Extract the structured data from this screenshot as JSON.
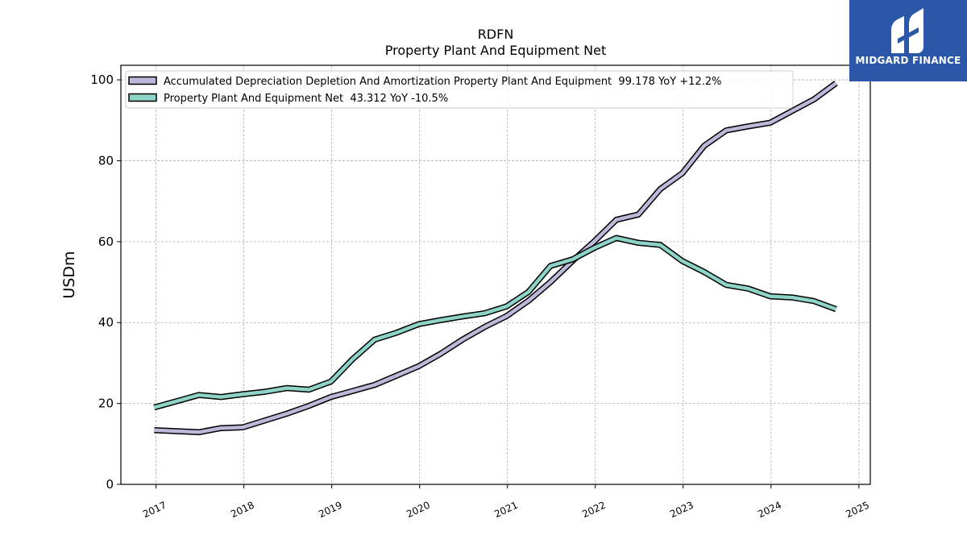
{
  "chart_data": {
    "type": "line",
    "title": "RDFN",
    "subtitle": "Property Plant And Equipment Net",
    "ylabel": "USDm",
    "xlabel": "",
    "ylim": [
      0,
      103.6
    ],
    "xlim": [
      2016.6,
      2025.13
    ],
    "x_ticks": [
      "2017",
      "2018",
      "2019",
      "2020",
      "2021",
      "2022",
      "2023",
      "2024",
      "2025"
    ],
    "y_ticks": [
      "0",
      "20",
      "40",
      "60",
      "80",
      "100"
    ],
    "grid": true,
    "legend_position": "top-left",
    "series": [
      {
        "name": "Accumulated Depreciation Depletion And Amortization Property Plant And Equipment  99.178 YoY +12.2%",
        "color": "#bcb8d9",
        "points": [
          {
            "x": 2016.98,
            "y": 13.4
          },
          {
            "x": 2017.49,
            "y": 12.9
          },
          {
            "x": 2017.74,
            "y": 13.9
          },
          {
            "x": 2017.99,
            "y": 14.1
          },
          {
            "x": 2018.24,
            "y": 15.8
          },
          {
            "x": 2018.49,
            "y": 17.5
          },
          {
            "x": 2018.74,
            "y": 19.4
          },
          {
            "x": 2018.99,
            "y": 21.6
          },
          {
            "x": 2019.24,
            "y": 23.1
          },
          {
            "x": 2019.49,
            "y": 24.6
          },
          {
            "x": 2019.74,
            "y": 26.9
          },
          {
            "x": 2019.99,
            "y": 29.2
          },
          {
            "x": 2020.24,
            "y": 32.3
          },
          {
            "x": 2020.49,
            "y": 35.8
          },
          {
            "x": 2020.74,
            "y": 38.9
          },
          {
            "x": 2020.99,
            "y": 41.6
          },
          {
            "x": 2021.24,
            "y": 45.4
          },
          {
            "x": 2021.49,
            "y": 50.0
          },
          {
            "x": 2021.74,
            "y": 55.2
          },
          {
            "x": 2021.99,
            "y": 60.1
          },
          {
            "x": 2022.24,
            "y": 65.4
          },
          {
            "x": 2022.49,
            "y": 66.7
          },
          {
            "x": 2022.74,
            "y": 73.0
          },
          {
            "x": 2022.99,
            "y": 76.9
          },
          {
            "x": 2023.24,
            "y": 83.7
          },
          {
            "x": 2023.49,
            "y": 87.5
          },
          {
            "x": 2023.74,
            "y": 88.5
          },
          {
            "x": 2023.99,
            "y": 89.4
          },
          {
            "x": 2024.24,
            "y": 92.3
          },
          {
            "x": 2024.49,
            "y": 95.2
          },
          {
            "x": 2024.74,
            "y": 99.178
          }
        ]
      },
      {
        "name": "Property Plant And Equipment Net  43.312 YoY -10.5%",
        "color": "#8dd3c7",
        "points": [
          {
            "x": 2016.98,
            "y": 19.0
          },
          {
            "x": 2017.49,
            "y": 22.1
          },
          {
            "x": 2017.74,
            "y": 21.6
          },
          {
            "x": 2017.99,
            "y": 22.3
          },
          {
            "x": 2018.24,
            "y": 22.9
          },
          {
            "x": 2018.49,
            "y": 23.8
          },
          {
            "x": 2018.74,
            "y": 23.4
          },
          {
            "x": 2018.99,
            "y": 25.4
          },
          {
            "x": 2019.24,
            "y": 31.0
          },
          {
            "x": 2019.49,
            "y": 35.8
          },
          {
            "x": 2019.74,
            "y": 37.5
          },
          {
            "x": 2019.99,
            "y": 39.6
          },
          {
            "x": 2020.24,
            "y": 40.6
          },
          {
            "x": 2020.49,
            "y": 41.5
          },
          {
            "x": 2020.74,
            "y": 42.3
          },
          {
            "x": 2020.99,
            "y": 44.0
          },
          {
            "x": 2021.24,
            "y": 47.6
          },
          {
            "x": 2021.49,
            "y": 54.0
          },
          {
            "x": 2021.74,
            "y": 55.6
          },
          {
            "x": 2021.99,
            "y": 58.5
          },
          {
            "x": 2022.24,
            "y": 60.9
          },
          {
            "x": 2022.49,
            "y": 59.7
          },
          {
            "x": 2022.74,
            "y": 59.2
          },
          {
            "x": 2022.99,
            "y": 55.2
          },
          {
            "x": 2023.24,
            "y": 52.5
          },
          {
            "x": 2023.49,
            "y": 49.3
          },
          {
            "x": 2023.74,
            "y": 48.4
          },
          {
            "x": 2023.99,
            "y": 46.5
          },
          {
            "x": 2024.24,
            "y": 46.2
          },
          {
            "x": 2024.49,
            "y": 45.3
          },
          {
            "x": 2024.74,
            "y": 43.312
          }
        ]
      }
    ]
  },
  "logo": {
    "text": "MIDGARD FINANCE",
    "background": "#2b57a8"
  }
}
